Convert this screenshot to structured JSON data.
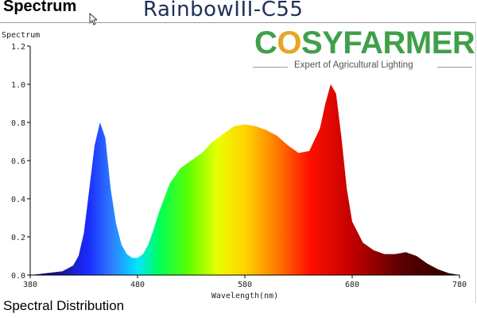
{
  "header": {
    "title": "Spectrum",
    "model": "RainbowIII-C55"
  },
  "brand": {
    "name_pre": "C",
    "name_o": "O",
    "name_post": "SYFARMER",
    "tagline": "Expert of Agricultural Lighting",
    "colors": {
      "green": "#40a04a",
      "orange": "#e8a422"
    }
  },
  "footer": {
    "caption": "Spectral Distribution"
  },
  "icons": {
    "cursor": "mouse-pointer-icon"
  },
  "chart_data": {
    "type": "area",
    "title": "",
    "xlabel": "Wavelength(nm)",
    "ylabel": "Spectrum",
    "xlim": [
      380,
      780
    ],
    "ylim": [
      0,
      1.2
    ],
    "xticks": [
      380,
      480,
      580,
      680,
      780
    ],
    "yticks": [
      0.0,
      0.2,
      0.4,
      0.6,
      0.8,
      1.0,
      1.2
    ],
    "ytick_labels": [
      "0.0",
      "0.2",
      "0.4",
      "0.6",
      "0.8",
      "1.0",
      "1.2"
    ],
    "fill": "spectral wavelength colors (violet-blue-green-yellow-red)",
    "grid": false,
    "series": [
      {
        "x": [
          380,
          410,
          420,
          425,
          430,
          435,
          440,
          445,
          450,
          455,
          460,
          465,
          470,
          475,
          480,
          485,
          490,
          495,
          500,
          510,
          520,
          530,
          540,
          550,
          560,
          570,
          580,
          590,
          600,
          610,
          620,
          630,
          640,
          650,
          655,
          660,
          665,
          670,
          675,
          680,
          690,
          700,
          710,
          720,
          730,
          740,
          750,
          760,
          770,
          780
        ],
        "y": [
          0.0,
          0.02,
          0.05,
          0.1,
          0.22,
          0.45,
          0.68,
          0.8,
          0.72,
          0.45,
          0.27,
          0.16,
          0.11,
          0.09,
          0.09,
          0.11,
          0.16,
          0.24,
          0.33,
          0.48,
          0.56,
          0.6,
          0.64,
          0.7,
          0.74,
          0.78,
          0.79,
          0.78,
          0.76,
          0.73,
          0.68,
          0.64,
          0.65,
          0.77,
          0.9,
          1.0,
          0.95,
          0.72,
          0.45,
          0.28,
          0.17,
          0.13,
          0.11,
          0.11,
          0.12,
          0.1,
          0.06,
          0.03,
          0.01,
          0.0
        ]
      }
    ]
  }
}
